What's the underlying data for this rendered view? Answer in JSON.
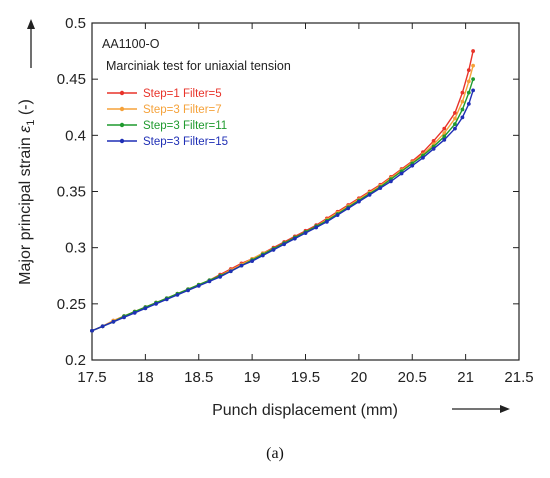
{
  "chart_data": {
    "type": "line",
    "title": "",
    "annotations": [
      "AA1100-O",
      "Marciniak test for uniaxial tension"
    ],
    "xlabel": "Punch displacement (mm)",
    "ylabel_prefix": "Major principal strain ",
    "ylabel_symbol": "ε",
    "ylabel_sub": "1",
    "ylabel_suffix": " (-)",
    "xlim": [
      17.5,
      21.5
    ],
    "ylim": [
      0.2,
      0.5
    ],
    "xticks": [
      "17.5",
      "18",
      "18.5",
      "19",
      "19.5",
      "20",
      "20.5",
      "21",
      "21.5"
    ],
    "yticks": [
      "0.2",
      "0.25",
      "0.3",
      "0.35",
      "0.4",
      "0.45",
      "0.5"
    ],
    "grid": false,
    "legend_position": "top-left",
    "caption": "(a)",
    "series": [
      {
        "name": "Step=1 Filter=5",
        "color": "#e8332a",
        "x": [
          17.5,
          17.6,
          17.7,
          17.8,
          17.9,
          18.0,
          18.1,
          18.2,
          18.3,
          18.4,
          18.5,
          18.6,
          18.7,
          18.8,
          18.9,
          19.0,
          19.1,
          19.2,
          19.3,
          19.4,
          19.5,
          19.6,
          19.7,
          19.8,
          19.9,
          20.0,
          20.1,
          20.2,
          20.3,
          20.4,
          20.5,
          20.6,
          20.7,
          20.8,
          20.9,
          20.97,
          21.03,
          21.07
        ],
        "y": [
          0.226,
          0.23,
          0.235,
          0.239,
          0.243,
          0.247,
          0.251,
          0.255,
          0.259,
          0.263,
          0.267,
          0.271,
          0.276,
          0.281,
          0.286,
          0.29,
          0.295,
          0.3,
          0.305,
          0.31,
          0.315,
          0.32,
          0.326,
          0.332,
          0.338,
          0.344,
          0.35,
          0.356,
          0.363,
          0.37,
          0.377,
          0.385,
          0.395,
          0.406,
          0.42,
          0.438,
          0.458,
          0.475
        ]
      },
      {
        "name": "Step=3 Filter=7",
        "color": "#f5a23a",
        "x": [
          17.5,
          17.6,
          17.7,
          17.8,
          17.9,
          18.0,
          18.1,
          18.2,
          18.3,
          18.4,
          18.5,
          18.6,
          18.7,
          18.8,
          18.9,
          19.0,
          19.1,
          19.2,
          19.3,
          19.4,
          19.5,
          19.6,
          19.7,
          19.8,
          19.9,
          20.0,
          20.1,
          20.2,
          20.3,
          20.4,
          20.5,
          20.6,
          20.7,
          20.8,
          20.9,
          20.97,
          21.03,
          21.07
        ],
        "y": [
          0.226,
          0.23,
          0.235,
          0.239,
          0.243,
          0.247,
          0.251,
          0.255,
          0.259,
          0.263,
          0.267,
          0.271,
          0.275,
          0.28,
          0.285,
          0.29,
          0.295,
          0.299,
          0.304,
          0.309,
          0.314,
          0.319,
          0.325,
          0.331,
          0.337,
          0.343,
          0.349,
          0.355,
          0.362,
          0.369,
          0.376,
          0.383,
          0.392,
          0.402,
          0.415,
          0.43,
          0.448,
          0.462
        ]
      },
      {
        "name": "Step=3 Filter=11",
        "color": "#1f9a2e",
        "x": [
          17.5,
          17.6,
          17.7,
          17.8,
          17.9,
          18.0,
          18.1,
          18.2,
          18.3,
          18.4,
          18.5,
          18.6,
          18.7,
          18.8,
          18.9,
          19.0,
          19.1,
          19.2,
          19.3,
          19.4,
          19.5,
          19.6,
          19.7,
          19.8,
          19.9,
          20.0,
          20.1,
          20.2,
          20.3,
          20.4,
          20.5,
          20.6,
          20.7,
          20.8,
          20.9,
          20.97,
          21.03,
          21.07
        ],
        "y": [
          0.226,
          0.23,
          0.234,
          0.239,
          0.243,
          0.247,
          0.251,
          0.255,
          0.259,
          0.263,
          0.267,
          0.271,
          0.275,
          0.279,
          0.284,
          0.289,
          0.294,
          0.299,
          0.304,
          0.309,
          0.314,
          0.319,
          0.324,
          0.33,
          0.336,
          0.342,
          0.348,
          0.354,
          0.361,
          0.368,
          0.375,
          0.382,
          0.39,
          0.399,
          0.41,
          0.423,
          0.438,
          0.45
        ]
      },
      {
        "name": "Step=3 Filter=15",
        "color": "#1f2fb5",
        "x": [
          17.5,
          17.6,
          17.7,
          17.8,
          17.9,
          18.0,
          18.1,
          18.2,
          18.3,
          18.4,
          18.5,
          18.6,
          18.7,
          18.8,
          18.9,
          19.0,
          19.1,
          19.2,
          19.3,
          19.4,
          19.5,
          19.6,
          19.7,
          19.8,
          19.9,
          20.0,
          20.1,
          20.2,
          20.3,
          20.4,
          20.5,
          20.6,
          20.7,
          20.8,
          20.9,
          20.97,
          21.03,
          21.07
        ],
        "y": [
          0.226,
          0.23,
          0.234,
          0.238,
          0.242,
          0.246,
          0.25,
          0.254,
          0.258,
          0.262,
          0.266,
          0.27,
          0.274,
          0.279,
          0.284,
          0.288,
          0.293,
          0.298,
          0.303,
          0.308,
          0.313,
          0.318,
          0.323,
          0.329,
          0.335,
          0.341,
          0.347,
          0.353,
          0.359,
          0.366,
          0.373,
          0.38,
          0.388,
          0.396,
          0.406,
          0.416,
          0.428,
          0.44
        ]
      }
    ]
  }
}
